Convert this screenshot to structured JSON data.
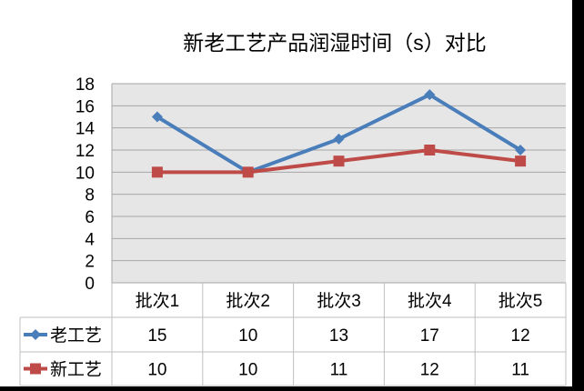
{
  "chart_data": {
    "type": "line",
    "title": "新老工艺产品润湿时间（s）对比",
    "categories": [
      "批次1",
      "批次2",
      "批次3",
      "批次4",
      "批次5"
    ],
    "ylim": [
      0,
      18
    ],
    "yticks": [
      0,
      2,
      4,
      6,
      8,
      10,
      12,
      14,
      16,
      18
    ],
    "grid": true,
    "legend": "data-table-left",
    "series": [
      {
        "name": "老工艺",
        "values": [
          15,
          10,
          13,
          17,
          12
        ],
        "color": "#4a7ebb",
        "marker": "diamond"
      },
      {
        "name": "新工艺",
        "values": [
          10,
          10,
          11,
          12,
          11
        ],
        "color": "#be4b48",
        "marker": "square"
      }
    ],
    "plot_background": "#e6e6e6",
    "gridline_color": "#a6a6a6"
  }
}
